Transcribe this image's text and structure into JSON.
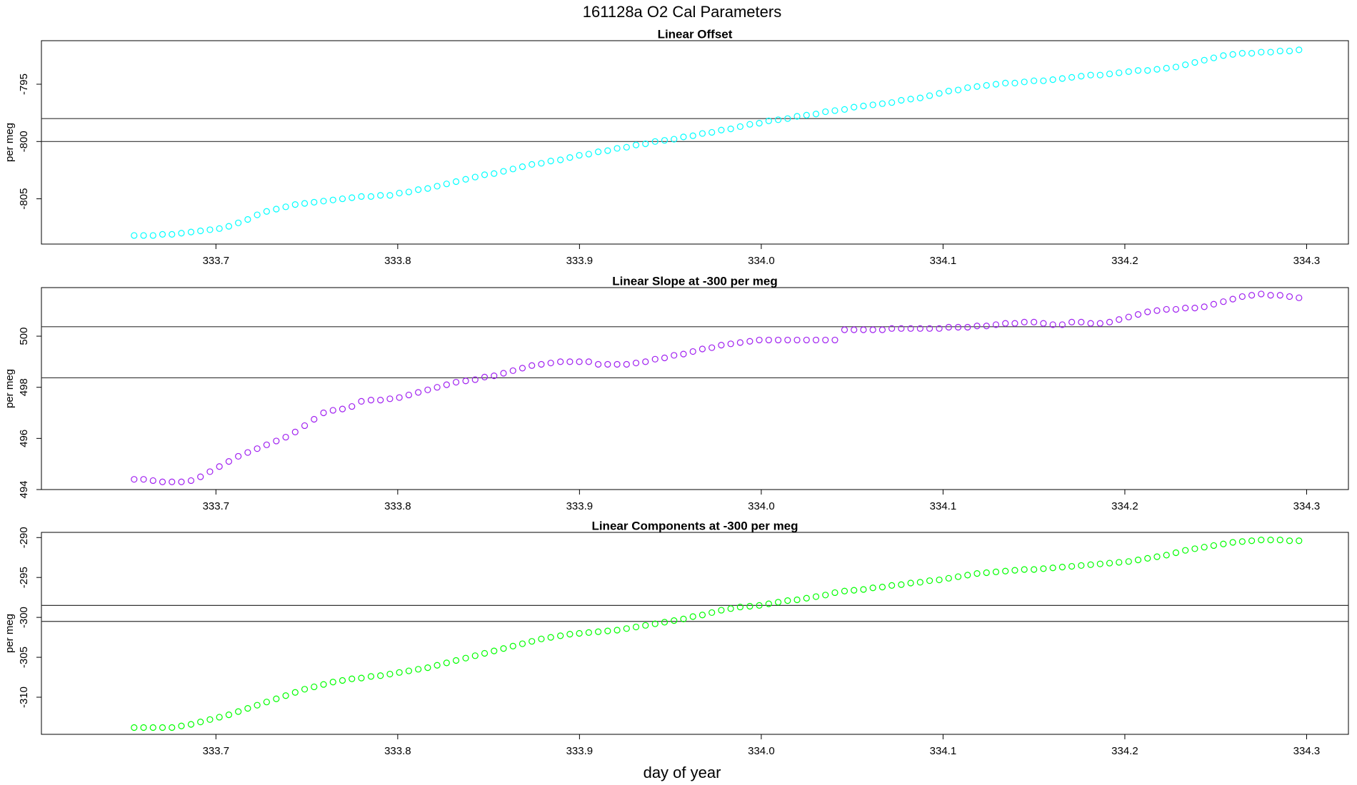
{
  "title": "161128a   O2 Cal Parameters",
  "xlabel": "day of year",
  "chart_data": [
    {
      "type": "scatter",
      "title": "Linear Offset",
      "ylabel": "per meg",
      "color": "#00ffff",
      "xlim": [
        333.604,
        334.323
      ],
      "ylim": [
        -808.95,
        -791.2
      ],
      "xticks": [
        333.7,
        333.8,
        333.9,
        {
          "value": 334,
          "label": "334.0"
        },
        334.1,
        334.2,
        334.3
      ],
      "yticks": [
        -805,
        -800,
        -795
      ],
      "hlines": [
        -798,
        -800
      ],
      "x": [
        333.655,
        333.6602,
        333.6654,
        333.6706,
        333.6758,
        333.681,
        333.6863,
        333.6915,
        333.6967,
        333.7019,
        333.7071,
        333.7123,
        333.7175,
        333.7227,
        333.7279,
        333.7332,
        333.7384,
        333.7436,
        333.7488,
        333.754,
        333.7592,
        333.7644,
        333.7696,
        333.7748,
        333.78,
        333.7853,
        333.7905,
        333.7957,
        333.8009,
        333.8061,
        333.8113,
        333.8165,
        333.8217,
        333.8269,
        333.8321,
        333.8374,
        333.8426,
        333.8478,
        333.853,
        333.8582,
        333.8634,
        333.8686,
        333.8738,
        333.879,
        333.8842,
        333.8895,
        333.8947,
        333.8999,
        333.9051,
        333.9103,
        333.9155,
        333.9207,
        333.9259,
        333.9311,
        333.9363,
        333.9416,
        333.9468,
        333.952,
        333.9572,
        333.9624,
        333.9676,
        333.9728,
        333.978,
        333.9832,
        333.9884,
        333.9937,
        333.9989,
        334.0041,
        334.0093,
        334.0145,
        334.0197,
        334.0249,
        334.0301,
        334.0353,
        334.0405,
        334.0458,
        334.051,
        334.0562,
        334.0614,
        334.0666,
        334.0718,
        334.077,
        334.0822,
        334.0874,
        334.0926,
        334.0979,
        334.1031,
        334.1083,
        334.1135,
        334.1187,
        334.1239,
        334.1291,
        334.1343,
        334.1395,
        334.1447,
        334.15,
        334.1552,
        334.1604,
        334.1656,
        334.1708,
        334.176,
        334.1812,
        334.1864,
        334.1916,
        334.1968,
        334.2021,
        334.2073,
        334.2125,
        334.2177,
        334.2229,
        334.2281,
        334.2333,
        334.2385,
        334.2437,
        334.2489,
        334.2542,
        334.2594,
        334.2646,
        334.2698,
        334.275,
        334.2802,
        334.2854,
        334.2906,
        334.2958
      ],
      "values": [
        -808.2,
        -808.2,
        -808.2,
        -808.1,
        -808.1,
        -808.0,
        -807.9,
        -807.8,
        -807.7,
        -807.6,
        -807.4,
        -807.1,
        -806.8,
        -806.4,
        -806.1,
        -805.9,
        -805.7,
        -805.5,
        -805.4,
        -805.3,
        -805.2,
        -805.1,
        -805.0,
        -804.9,
        -804.8,
        -804.8,
        -804.7,
        -804.7,
        -804.5,
        -804.4,
        -804.2,
        -804.1,
        -803.9,
        -803.7,
        -803.5,
        -803.3,
        -803.1,
        -802.9,
        -802.8,
        -802.6,
        -802.4,
        -802.2,
        -802.0,
        -801.9,
        -801.7,
        -801.6,
        -801.4,
        -801.2,
        -801.1,
        -800.9,
        -800.8,
        -800.6,
        -800.5,
        -800.3,
        -800.2,
        -800.0,
        -799.9,
        -799.8,
        -799.6,
        -799.5,
        -799.3,
        -799.2,
        -799.0,
        -798.9,
        -798.7,
        -798.5,
        -798.4,
        -798.2,
        -798.1,
        -798.0,
        -797.8,
        -797.7,
        -797.6,
        -797.4,
        -797.3,
        -797.2,
        -797.0,
        -796.9,
        -796.8,
        -796.7,
        -796.6,
        -796.4,
        -796.3,
        -796.2,
        -796.0,
        -795.8,
        -795.6,
        -795.5,
        -795.3,
        -795.2,
        -795.1,
        -795.0,
        -794.9,
        -794.9,
        -794.8,
        -794.7,
        -794.7,
        -794.6,
        -794.5,
        -794.4,
        -794.3,
        -794.2,
        -794.2,
        -794.1,
        -794.0,
        -793.9,
        -793.8,
        -793.8,
        -793.7,
        -793.6,
        -793.5,
        -793.3,
        -793.1,
        -792.9,
        -792.7,
        -792.5,
        -792.4,
        -792.3,
        -792.3,
        -792.2,
        -792.2,
        -792.1,
        -792.1,
        -792.0
      ]
    },
    {
      "type": "scatter",
      "title": "Linear Slope at -300 per meg",
      "ylabel": "per meg",
      "color": "#a020f0",
      "xlim": [
        333.604,
        334.323
      ],
      "ylim": [
        494,
        501.9
      ],
      "xticks": [
        333.7,
        333.8,
        333.9,
        {
          "value": 334,
          "label": "334.0"
        },
        334.1,
        334.2,
        334.3
      ],
      "yticks": [
        494,
        496,
        498,
        500
      ],
      "hlines": [
        500.37,
        498.37
      ],
      "x": [
        333.655,
        333.6602,
        333.6654,
        333.6706,
        333.6758,
        333.681,
        333.6863,
        333.6915,
        333.6967,
        333.7019,
        333.7071,
        333.7123,
        333.7175,
        333.7227,
        333.7279,
        333.7332,
        333.7384,
        333.7436,
        333.7488,
        333.754,
        333.7592,
        333.7644,
        333.7696,
        333.7748,
        333.78,
        333.7853,
        333.7905,
        333.7957,
        333.8009,
        333.8061,
        333.8113,
        333.8165,
        333.8217,
        333.8269,
        333.8321,
        333.8374,
        333.8426,
        333.8478,
        333.853,
        333.8582,
        333.8634,
        333.8686,
        333.8738,
        333.879,
        333.8842,
        333.8895,
        333.8947,
        333.8999,
        333.9051,
        333.9103,
        333.9155,
        333.9207,
        333.9259,
        333.9311,
        333.9363,
        333.9416,
        333.9468,
        333.952,
        333.9572,
        333.9624,
        333.9676,
        333.9728,
        333.978,
        333.9832,
        333.9884,
        333.9937,
        333.9989,
        334.0041,
        334.0093,
        334.0145,
        334.0197,
        334.0249,
        334.0301,
        334.0353,
        334.0405,
        334.0458,
        334.051,
        334.0562,
        334.0614,
        334.0666,
        334.0718,
        334.077,
        334.0822,
        334.0874,
        334.0926,
        334.0979,
        334.1031,
        334.1083,
        334.1135,
        334.1187,
        334.1239,
        334.1291,
        334.1343,
        334.1395,
        334.1447,
        334.15,
        334.1552,
        334.1604,
        334.1656,
        334.1708,
        334.176,
        334.1812,
        334.1864,
        334.1916,
        334.1968,
        334.2021,
        334.2073,
        334.2125,
        334.2177,
        334.2229,
        334.2281,
        334.2333,
        334.2385,
        334.2437,
        334.2489,
        334.2542,
        334.2594,
        334.2646,
        334.2698,
        334.275,
        334.2802,
        334.2854,
        334.2906,
        334.2958
      ],
      "values": [
        494.4,
        494.4,
        494.35,
        494.3,
        494.3,
        494.3,
        494.35,
        494.5,
        494.7,
        494.9,
        495.1,
        495.3,
        495.45,
        495.6,
        495.75,
        495.9,
        496.05,
        496.25,
        496.5,
        496.75,
        497.0,
        497.1,
        497.15,
        497.25,
        497.45,
        497.5,
        497.5,
        497.55,
        497.6,
        497.7,
        497.8,
        497.9,
        498.0,
        498.1,
        498.2,
        498.25,
        498.3,
        498.4,
        498.45,
        498.55,
        498.65,
        498.75,
        498.85,
        498.9,
        498.95,
        499.0,
        499.0,
        499.0,
        499.0,
        498.9,
        498.9,
        498.9,
        498.9,
        498.95,
        499.0,
        499.1,
        499.15,
        499.25,
        499.3,
        499.4,
        499.5,
        499.55,
        499.65,
        499.7,
        499.75,
        499.8,
        499.85,
        499.85,
        499.85,
        499.85,
        499.85,
        499.85,
        499.85,
        499.85,
        499.85,
        500.25,
        500.25,
        500.25,
        500.25,
        500.25,
        500.3,
        500.3,
        500.3,
        500.3,
        500.3,
        500.3,
        500.35,
        500.35,
        500.35,
        500.4,
        500.4,
        500.45,
        500.5,
        500.5,
        500.55,
        500.55,
        500.5,
        500.45,
        500.45,
        500.55,
        500.55,
        500.5,
        500.5,
        500.55,
        500.65,
        500.75,
        500.85,
        500.95,
        501.0,
        501.05,
        501.05,
        501.1,
        501.1,
        501.15,
        501.25,
        501.35,
        501.45,
        501.55,
        501.6,
        501.65,
        501.6,
        501.6,
        501.55,
        501.5
      ]
    },
    {
      "type": "scatter",
      "title": "Linear Components at -300 per meg",
      "ylabel": "per meg",
      "color": "#00ff00",
      "xlim": [
        333.604,
        334.323
      ],
      "ylim": [
        -314.65,
        -289.35
      ],
      "xticks": [
        333.7,
        333.8,
        333.9,
        {
          "value": 334,
          "label": "334.0"
        },
        334.1,
        334.2,
        334.3
      ],
      "yticks": [
        -310,
        -305,
        -300,
        -295,
        -290
      ],
      "hlines": [
        -298.5,
        -300.5
      ],
      "x": [
        333.655,
        333.6602,
        333.6654,
        333.6706,
        333.6758,
        333.681,
        333.6863,
        333.6915,
        333.6967,
        333.7019,
        333.7071,
        333.7123,
        333.7175,
        333.7227,
        333.7279,
        333.7332,
        333.7384,
        333.7436,
        333.7488,
        333.754,
        333.7592,
        333.7644,
        333.7696,
        333.7748,
        333.78,
        333.7853,
        333.7905,
        333.7957,
        333.8009,
        333.8061,
        333.8113,
        333.8165,
        333.8217,
        333.8269,
        333.8321,
        333.8374,
        333.8426,
        333.8478,
        333.853,
        333.8582,
        333.8634,
        333.8686,
        333.8738,
        333.879,
        333.8842,
        333.8895,
        333.8947,
        333.8999,
        333.9051,
        333.9103,
        333.9155,
        333.9207,
        333.9259,
        333.9311,
        333.9363,
        333.9416,
        333.9468,
        333.952,
        333.9572,
        333.9624,
        333.9676,
        333.9728,
        333.978,
        333.9832,
        333.9884,
        333.9937,
        333.9989,
        334.0041,
        334.0093,
        334.0145,
        334.0197,
        334.0249,
        334.0301,
        334.0353,
        334.0405,
        334.0458,
        334.051,
        334.0562,
        334.0614,
        334.0666,
        334.0718,
        334.077,
        334.0822,
        334.0874,
        334.0926,
        334.0979,
        334.1031,
        334.1083,
        334.1135,
        334.1187,
        334.1239,
        334.1291,
        334.1343,
        334.1395,
        334.1447,
        334.15,
        334.1552,
        334.1604,
        334.1656,
        334.1708,
        334.176,
        334.1812,
        334.1864,
        334.1916,
        334.1968,
        334.2021,
        334.2073,
        334.2125,
        334.2177,
        334.2229,
        334.2281,
        334.2333,
        334.2385,
        334.2437,
        334.2489,
        334.2542,
        334.2594,
        334.2646,
        334.2698,
        334.275,
        334.2802,
        334.2854,
        334.2906,
        334.2958
      ],
      "values": [
        -313.8,
        -313.8,
        -313.8,
        -313.8,
        -313.8,
        -313.6,
        -313.4,
        -313.1,
        -312.8,
        -312.5,
        -312.2,
        -311.8,
        -311.4,
        -311.0,
        -310.6,
        -310.2,
        -309.8,
        -309.4,
        -309.0,
        -308.7,
        -308.4,
        -308.1,
        -307.9,
        -307.7,
        -307.6,
        -307.4,
        -307.3,
        -307.1,
        -306.9,
        -306.7,
        -306.5,
        -306.3,
        -306.0,
        -305.7,
        -305.4,
        -305.1,
        -304.8,
        -304.5,
        -304.2,
        -303.9,
        -303.6,
        -303.3,
        -303.0,
        -302.7,
        -302.5,
        -302.3,
        -302.1,
        -302.0,
        -301.9,
        -301.8,
        -301.7,
        -301.6,
        -301.4,
        -301.2,
        -301.0,
        -300.8,
        -300.6,
        -300.4,
        -300.2,
        -299.9,
        -299.7,
        -299.4,
        -299.1,
        -298.9,
        -298.7,
        -298.6,
        -298.5,
        -298.3,
        -298.1,
        -297.9,
        -297.8,
        -297.6,
        -297.4,
        -297.2,
        -296.9,
        -296.7,
        -296.6,
        -296.5,
        -296.3,
        -296.2,
        -296.0,
        -295.9,
        -295.7,
        -295.6,
        -295.4,
        -295.3,
        -295.1,
        -294.9,
        -294.7,
        -294.5,
        -294.4,
        -294.3,
        -294.2,
        -294.1,
        -294.0,
        -294.0,
        -293.9,
        -293.8,
        -293.7,
        -293.6,
        -293.5,
        -293.4,
        -293.3,
        -293.2,
        -293.1,
        -293.0,
        -292.8,
        -292.6,
        -292.4,
        -292.2,
        -291.9,
        -291.6,
        -291.4,
        -291.2,
        -291.0,
        -290.8,
        -290.6,
        -290.5,
        -290.4,
        -290.3,
        -290.3,
        -290.3,
        -290.4,
        -290.4
      ]
    }
  ]
}
